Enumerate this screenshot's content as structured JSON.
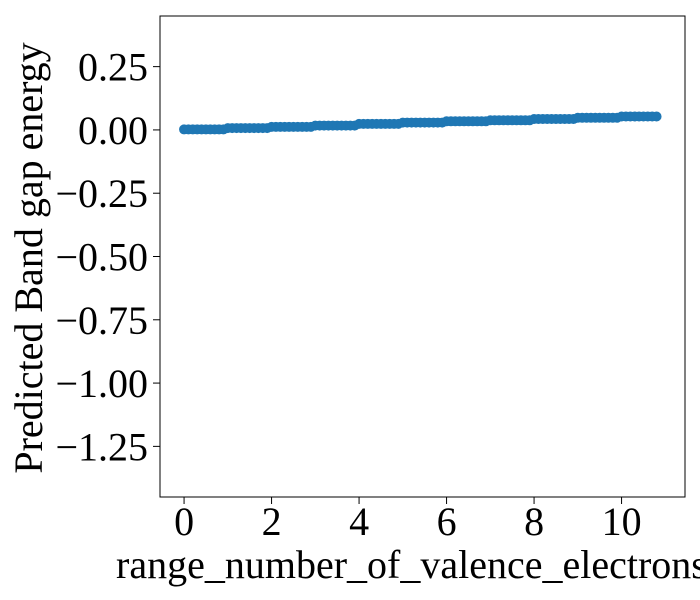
{
  "chart_data": {
    "type": "scatter",
    "title": "",
    "xlabel": "range_number_of_valence_electrons",
    "ylabel": "Predicted Band gap energy",
    "xlim": [
      -0.55,
      11.45
    ],
    "ylim": [
      -1.45,
      0.45
    ],
    "xticks": [
      0,
      2,
      4,
      6,
      8,
      10
    ],
    "yticks": [
      0.25,
      0.0,
      -0.25,
      -0.5,
      -0.75,
      -1.0,
      -1.25
    ],
    "xtick_labels": [
      "0",
      "2",
      "4",
      "6",
      "8",
      "10"
    ],
    "ytick_labels": [
      "0.25",
      "0.00",
      "−0.25",
      "−0.50",
      "−0.75",
      "−1.00",
      "−1.25"
    ],
    "grid": false,
    "legend": false,
    "series": [
      {
        "color": "#1f77b4",
        "x": [
          0.0,
          0.1,
          0.2,
          0.3,
          0.4,
          0.5,
          0.6,
          0.7,
          0.8,
          0.9,
          1.0,
          1.1,
          1.2,
          1.3,
          1.4,
          1.5,
          1.6,
          1.7,
          1.8,
          1.9,
          2.0,
          2.1,
          2.2,
          2.3,
          2.4,
          2.5,
          2.6,
          2.7,
          2.8,
          2.9,
          3.0,
          3.1,
          3.2,
          3.3,
          3.4,
          3.5,
          3.6,
          3.7,
          3.8,
          3.9,
          4.0,
          4.1,
          4.2,
          4.3,
          4.4,
          4.5,
          4.6,
          4.7,
          4.8,
          4.9,
          5.0,
          5.1,
          5.2,
          5.3,
          5.4,
          5.5,
          5.6,
          5.7,
          5.8,
          5.9,
          6.0,
          6.1,
          6.2,
          6.3,
          6.4,
          6.5,
          6.6,
          6.7,
          6.8,
          6.9,
          7.0,
          7.1,
          7.2,
          7.3,
          7.4,
          7.5,
          7.6,
          7.7,
          7.8,
          7.9,
          8.0,
          8.1,
          8.2,
          8.3,
          8.4,
          8.5,
          8.6,
          8.7,
          8.8,
          8.9,
          9.0,
          9.1,
          9.2,
          9.3,
          9.4,
          9.5,
          9.6,
          9.7,
          9.8,
          9.9,
          10.0,
          10.1,
          10.2,
          10.3,
          10.4,
          10.5,
          10.6,
          10.7,
          10.8
        ],
        "y": [
          0.002,
          0.002,
          0.002,
          0.002,
          0.002,
          0.002,
          0.002,
          0.002,
          0.002,
          0.002,
          0.007,
          0.007,
          0.007,
          0.007,
          0.007,
          0.007,
          0.007,
          0.007,
          0.007,
          0.007,
          0.012,
          0.012,
          0.012,
          0.012,
          0.012,
          0.012,
          0.012,
          0.012,
          0.012,
          0.012,
          0.017,
          0.017,
          0.017,
          0.017,
          0.017,
          0.017,
          0.017,
          0.017,
          0.017,
          0.017,
          0.024,
          0.024,
          0.024,
          0.024,
          0.024,
          0.024,
          0.024,
          0.024,
          0.024,
          0.024,
          0.029,
          0.029,
          0.029,
          0.029,
          0.029,
          0.029,
          0.029,
          0.029,
          0.029,
          0.029,
          0.034,
          0.034,
          0.034,
          0.034,
          0.034,
          0.034,
          0.034,
          0.034,
          0.034,
          0.034,
          0.038,
          0.038,
          0.038,
          0.038,
          0.038,
          0.038,
          0.038,
          0.038,
          0.038,
          0.038,
          0.043,
          0.043,
          0.043,
          0.043,
          0.043,
          0.043,
          0.043,
          0.043,
          0.043,
          0.043,
          0.048,
          0.048,
          0.048,
          0.048,
          0.048,
          0.048,
          0.048,
          0.048,
          0.048,
          0.048,
          0.053,
          0.053,
          0.053,
          0.053,
          0.053,
          0.053,
          0.053,
          0.053,
          0.053
        ]
      }
    ]
  }
}
